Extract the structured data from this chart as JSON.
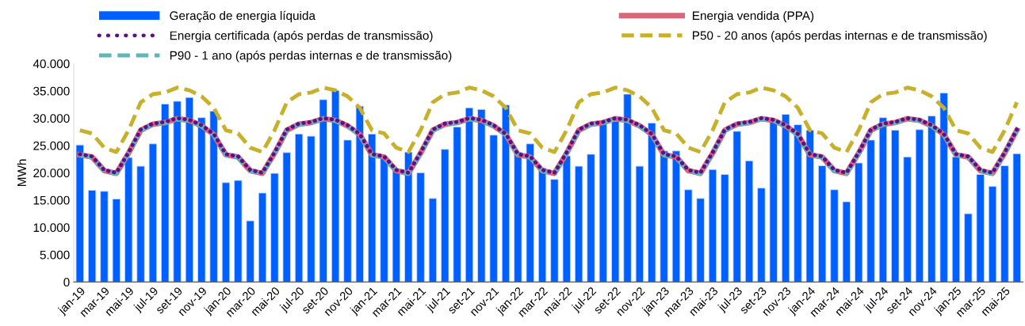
{
  "chart_data": {
    "type": "bar",
    "ylabel": "MWh",
    "categories": [
      "jan-19",
      null,
      "mar-19",
      null,
      "mai-19",
      null,
      "jul-19",
      null,
      "set-19",
      null,
      "nov-19",
      null,
      "jan-20",
      null,
      "mar-20",
      null,
      "mai-20",
      null,
      "jul-20",
      null,
      "set-20",
      null,
      "nov-20",
      null,
      "jan-21",
      null,
      "mar-21",
      null,
      "mai-21",
      null,
      "jul-21",
      null,
      "set-21",
      null,
      "nov-21",
      null,
      "jan-22",
      null,
      "mar-22",
      null,
      "mai-22",
      null,
      "jul-22",
      null,
      "set-22",
      null,
      "nov-22",
      null,
      "jan-23",
      null,
      "mar-23",
      null,
      "mai-23",
      null,
      "jul-23",
      null,
      "set-23",
      null,
      "nov-23",
      null,
      "jan-24",
      null,
      "mar-24",
      null,
      "mai-24",
      null,
      "jul-24",
      null,
      "set-24",
      null,
      "nov-24",
      null,
      "jan-25",
      null,
      "mar-25",
      null,
      "mai-25",
      null
    ],
    "series": [
      {
        "name": "Geração de energia líquida",
        "type": "bar",
        "color": "#0060ff",
        "values": [
          25100,
          16800,
          16600,
          15200,
          22800,
          21200,
          25300,
          32600,
          33100,
          33800,
          30100,
          31300,
          18200,
          18600,
          11200,
          16300,
          19900,
          23700,
          27100,
          26700,
          33400,
          35100,
          26000,
          32200,
          27100,
          22800,
          20600,
          23800,
          20000,
          15300,
          24300,
          28400,
          31900,
          31600,
          26900,
          32400,
          23800,
          25300,
          20900,
          18800,
          23100,
          21200,
          23400,
          29000,
          29400,
          34400,
          21200,
          29100,
          24000,
          24000,
          16900,
          15300,
          20600,
          19700,
          27600,
          22200,
          17200,
          29400,
          30700,
          28800,
          27800,
          21300,
          16900,
          14700,
          21800,
          26000,
          30100,
          27800,
          22900,
          27900,
          30400,
          34600,
          22900,
          12500,
          19700,
          17500,
          21300,
          23500
        ]
      },
      {
        "name": "Energia vendida (PPA)",
        "type": "line",
        "color": "#d9667a",
        "line_style": "solid",
        "values": [
          23300,
          22900,
          20400,
          19900,
          23600,
          27800,
          28900,
          29200,
          29900,
          29600,
          28600,
          27000,
          23300,
          22900,
          20400,
          19900,
          23600,
          27800,
          28900,
          29200,
          29900,
          29600,
          28600,
          27000,
          23300,
          22900,
          20400,
          19900,
          23600,
          27800,
          28900,
          29200,
          29900,
          29600,
          28600,
          27000,
          23300,
          22900,
          20400,
          19900,
          23600,
          27800,
          28900,
          29200,
          29900,
          29600,
          28600,
          27000,
          23300,
          22900,
          20400,
          19900,
          23600,
          27800,
          28900,
          29200,
          29900,
          29600,
          28600,
          27000,
          23300,
          22900,
          20400,
          19900,
          23600,
          27800,
          28900,
          29200,
          29900,
          29600,
          28600,
          27000,
          23300,
          22900,
          20400,
          19900,
          23600,
          27800
        ]
      },
      {
        "name": "Energia certificada (após perdas de transmissão)",
        "type": "line",
        "color": "#5b0f8c",
        "line_style": "dotted",
        "values": [
          23400,
          23000,
          20500,
          20000,
          23700,
          27900,
          29000,
          29300,
          30000,
          29700,
          28700,
          27100,
          23400,
          23000,
          20500,
          20000,
          23700,
          27900,
          29000,
          29300,
          30000,
          29700,
          28700,
          27100,
          23400,
          23000,
          20500,
          20000,
          23700,
          27900,
          29000,
          29300,
          30000,
          29700,
          28700,
          27100,
          23400,
          23000,
          20500,
          20000,
          23700,
          27900,
          29000,
          29300,
          30000,
          29700,
          28700,
          27100,
          23400,
          23000,
          20500,
          20000,
          23700,
          27900,
          29000,
          29300,
          30000,
          29700,
          28700,
          27100,
          23400,
          23000,
          20500,
          20000,
          23700,
          27900,
          29000,
          29300,
          30000,
          29700,
          28700,
          27100,
          23400,
          23000,
          20500,
          20000,
          23700,
          27900
        ]
      },
      {
        "name": "P50 - 20 anos (após perdas internas e de transmissão)",
        "type": "line",
        "color": "#c9b02a",
        "line_style": "dashed",
        "values": [
          27800,
          27200,
          24600,
          23800,
          27800,
          32900,
          34400,
          34700,
          35600,
          35100,
          34000,
          31900,
          27800,
          27200,
          24600,
          23800,
          27800,
          32900,
          34400,
          34700,
          35600,
          35100,
          34000,
          31900,
          27800,
          27200,
          24600,
          23800,
          27800,
          32900,
          34400,
          34700,
          35600,
          35100,
          34000,
          31900,
          27800,
          27200,
          24600,
          23800,
          27800,
          32900,
          34400,
          34700,
          35600,
          35100,
          34000,
          31900,
          27800,
          27200,
          24600,
          23800,
          27800,
          32900,
          34400,
          34700,
          35600,
          35100,
          34000,
          31900,
          27800,
          27200,
          24600,
          23800,
          27800,
          32900,
          34400,
          34700,
          35600,
          35100,
          34000,
          31900,
          27800,
          27200,
          24600,
          23800,
          27800,
          32900
        ]
      },
      {
        "name": "P90 - 1 ano (após perdas internas e de transmissão)",
        "type": "line",
        "color": "#5fb5b8",
        "line_style": "dashed",
        "values": [
          23200,
          22800,
          20300,
          19800,
          23500,
          27700,
          28800,
          29100,
          29800,
          29500,
          28500,
          26900,
          23200,
          22800,
          20300,
          19800,
          23500,
          27700,
          28800,
          29100,
          29800,
          29500,
          28500,
          26900,
          23200,
          22800,
          20300,
          19800,
          23500,
          27700,
          28800,
          29100,
          29800,
          29500,
          28500,
          26900,
          23200,
          22800,
          20300,
          19800,
          23500,
          27700,
          28800,
          29100,
          29800,
          29500,
          28500,
          26900,
          23200,
          22800,
          20300,
          19800,
          23500,
          27700,
          28800,
          29100,
          29800,
          29500,
          28500,
          26900,
          23200,
          22800,
          20300,
          19800,
          23500,
          27700,
          28800,
          29100,
          29800,
          29500,
          28500,
          26900,
          23200,
          22800,
          20300,
          19800,
          23500,
          27700
        ]
      }
    ],
    "ylim": [
      0,
      40000
    ],
    "yticks": [
      {
        "value": 0,
        "label": "0"
      },
      {
        "value": 5000,
        "label": "5.000"
      },
      {
        "value": 10000,
        "label": "10.000"
      },
      {
        "value": 15000,
        "label": "15.000"
      },
      {
        "value": 20000,
        "label": "20.000"
      },
      {
        "value": 25000,
        "label": "25.000"
      },
      {
        "value": 30000,
        "label": "30.000"
      },
      {
        "value": 35000,
        "label": "35.000"
      },
      {
        "value": 40000,
        "label": "40.000"
      }
    ],
    "grid": false,
    "legend": "top"
  }
}
